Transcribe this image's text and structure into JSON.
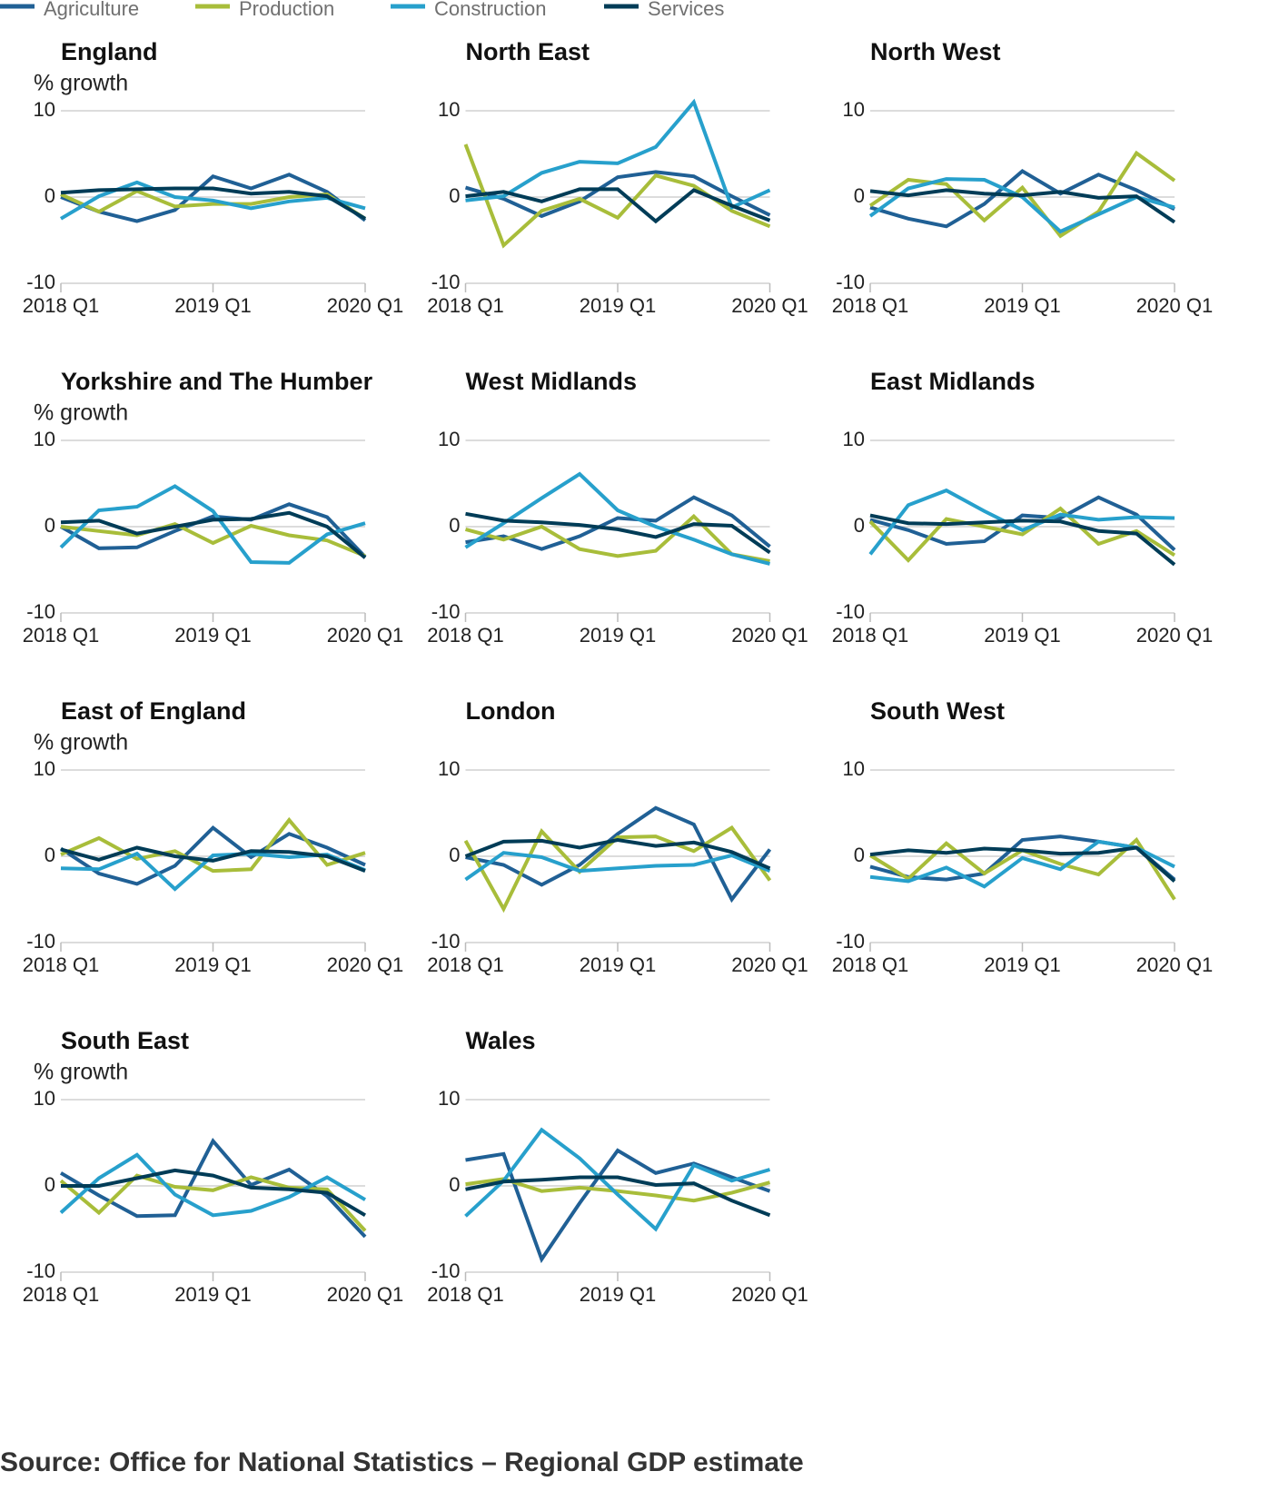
{
  "chart_data": [
    {
      "type": "line",
      "title": "England",
      "ylabel": "% growth",
      "categories": [
        "2018 Q1",
        null,
        null,
        null,
        "2019 Q1",
        null,
        null,
        null,
        "2020 Q1"
      ],
      "ylim": [
        -10,
        10
      ],
      "yticks": [
        -10,
        0,
        10
      ],
      "grid": true,
      "series": [
        {
          "name": "Agriculture",
          "color": "#206095",
          "values": [
            0,
            -1.7,
            -2.8,
            -1.5,
            2.4,
            1.0,
            2.6,
            0.6,
            -2.7
          ]
        },
        {
          "name": "Production",
          "color": "#a8bd3a",
          "values": [
            0.3,
            -1.7,
            0.7,
            -1.1,
            -0.8,
            -0.8,
            0,
            0.3,
            -2.5
          ]
        },
        {
          "name": "Construction",
          "color": "#27a0cc",
          "values": [
            -2.5,
            0.1,
            1.7,
            0,
            -0.4,
            -1.3,
            -0.5,
            -0.1,
            -1.3
          ]
        },
        {
          "name": "Services",
          "color": "#003c57",
          "values": [
            0.5,
            0.8,
            0.9,
            1.0,
            1.0,
            0.4,
            0.6,
            0.1,
            -2.5
          ]
        }
      ]
    },
    {
      "type": "line",
      "title": "North East",
      "categories": [
        "2018 Q1",
        null,
        null,
        null,
        "2019 Q1",
        null,
        null,
        null,
        "2020 Q1"
      ],
      "ylim": [
        -10,
        10
      ],
      "yticks": [
        -10,
        0,
        10
      ],
      "grid": true,
      "series": [
        {
          "name": "Agriculture",
          "color": "#206095",
          "values": [
            1.1,
            -0.2,
            -2.2,
            -0.5,
            2.3,
            2.9,
            2.4,
            0.1,
            -2.1
          ]
        },
        {
          "name": "Production",
          "color": "#a8bd3a",
          "values": [
            6.1,
            -5.6,
            -1.6,
            -0.2,
            -2.4,
            2.5,
            1.3,
            -1.6,
            -3.4
          ]
        },
        {
          "name": "Construction",
          "color": "#27a0cc",
          "values": [
            -0.4,
            0.1,
            2.8,
            4.1,
            3.9,
            5.8,
            11.0,
            -1.2,
            0.8
          ]
        },
        {
          "name": "Services",
          "color": "#003c57",
          "values": [
            0.1,
            0.6,
            -0.5,
            0.9,
            0.9,
            -2.8,
            0.8,
            -1.0,
            -2.7
          ]
        }
      ]
    },
    {
      "type": "line",
      "title": "North West",
      "categories": [
        "2018 Q1",
        null,
        null,
        null,
        "2019 Q1",
        null,
        null,
        null,
        "2020 Q1"
      ],
      "ylim": [
        -10,
        10
      ],
      "yticks": [
        -10,
        0,
        10
      ],
      "grid": true,
      "series": [
        {
          "name": "Agriculture",
          "color": "#206095",
          "values": [
            -1.2,
            -2.5,
            -3.4,
            -0.8,
            3.0,
            0.4,
            2.6,
            0.8,
            -1.4
          ]
        },
        {
          "name": "Production",
          "color": "#a8bd3a",
          "values": [
            -1.0,
            2.0,
            1.5,
            -2.7,
            1.1,
            -4.5,
            -1.7,
            5.1,
            1.9
          ]
        },
        {
          "name": "Construction",
          "color": "#27a0cc",
          "values": [
            -2.2,
            1.0,
            2.1,
            2.0,
            0,
            -4.0,
            -2.0,
            0,
            -1.2
          ]
        },
        {
          "name": "Services",
          "color": "#003c57",
          "values": [
            0.7,
            0.2,
            0.8,
            0.4,
            0.2,
            0.6,
            -0.1,
            0.1,
            -2.9
          ]
        }
      ]
    },
    {
      "type": "line",
      "title": "Yorkshire and The Humber",
      "ylabel": "% growth",
      "categories": [
        "2018 Q1",
        null,
        null,
        null,
        "2019 Q1",
        null,
        null,
        null,
        "2020 Q1"
      ],
      "ylim": [
        -10,
        10
      ],
      "yticks": [
        -10,
        0,
        10
      ],
      "grid": true,
      "series": [
        {
          "name": "Agriculture",
          "color": "#206095",
          "values": [
            0,
            -2.5,
            -2.4,
            -0.5,
            1.2,
            0.8,
            2.6,
            1.1,
            -3.5
          ]
        },
        {
          "name": "Production",
          "color": "#a8bd3a",
          "values": [
            0,
            -0.5,
            -1.0,
            0.3,
            -1.9,
            0.1,
            -1.0,
            -1.6,
            -3.4
          ]
        },
        {
          "name": "Construction",
          "color": "#27a0cc",
          "values": [
            -2.4,
            1.9,
            2.3,
            4.7,
            1.8,
            -4.1,
            -4.2,
            -0.9,
            0.4
          ]
        },
        {
          "name": "Services",
          "color": "#003c57",
          "values": [
            0.5,
            0.7,
            -0.8,
            0,
            0.8,
            0.9,
            1.6,
            0,
            -3.6
          ]
        }
      ]
    },
    {
      "type": "line",
      "title": "West Midlands",
      "categories": [
        "2018 Q1",
        null,
        null,
        null,
        "2019 Q1",
        null,
        null,
        null,
        "2020 Q1"
      ],
      "ylim": [
        -10,
        10
      ],
      "yticks": [
        -10,
        0,
        10
      ],
      "grid": true,
      "series": [
        {
          "name": "Agriculture",
          "color": "#206095",
          "values": [
            -1.8,
            -1.1,
            -2.6,
            -1.1,
            1.0,
            0.7,
            3.4,
            1.3,
            -2.3
          ]
        },
        {
          "name": "Production",
          "color": "#a8bd3a",
          "values": [
            -0.3,
            -1.5,
            0,
            -2.6,
            -3.4,
            -2.8,
            1.2,
            -3.2,
            -4.0
          ]
        },
        {
          "name": "Construction",
          "color": "#27a0cc",
          "values": [
            -2.4,
            0.4,
            3.3,
            6.1,
            1.9,
            0,
            -1.5,
            -3.2,
            -4.3
          ]
        },
        {
          "name": "Services",
          "color": "#003c57",
          "values": [
            1.5,
            0.7,
            0.5,
            0.2,
            -0.3,
            -1.2,
            0.3,
            0.1,
            -3.0
          ]
        }
      ]
    },
    {
      "type": "line",
      "title": "East Midlands",
      "categories": [
        "2018 Q1",
        null,
        null,
        null,
        "2019 Q1",
        null,
        null,
        null,
        "2020 Q1"
      ],
      "ylim": [
        -10,
        10
      ],
      "yticks": [
        -10,
        0,
        10
      ],
      "grid": true,
      "series": [
        {
          "name": "Agriculture",
          "color": "#206095",
          "values": [
            0.8,
            -0.4,
            -2.0,
            -1.7,
            1.3,
            1.0,
            3.4,
            1.4,
            -2.7
          ]
        },
        {
          "name": "Production",
          "color": "#a8bd3a",
          "values": [
            0.6,
            -3.9,
            0.9,
            0,
            -0.9,
            2.1,
            -2.0,
            -0.5,
            -3.3
          ]
        },
        {
          "name": "Construction",
          "color": "#27a0cc",
          "values": [
            -3.2,
            2.5,
            4.2,
            1.8,
            -0.4,
            1.4,
            0.8,
            1.1,
            1.0
          ]
        },
        {
          "name": "Services",
          "color": "#003c57",
          "values": [
            1.3,
            0.4,
            0.3,
            0.5,
            0.7,
            0.6,
            -0.5,
            -0.8,
            -4.4
          ]
        }
      ]
    },
    {
      "type": "line",
      "title": "East of England",
      "ylabel": "% growth",
      "categories": [
        "2018 Q1",
        null,
        null,
        null,
        "2019 Q1",
        null,
        null,
        null,
        "2020 Q1"
      ],
      "ylim": [
        -10,
        10
      ],
      "yticks": [
        -10,
        0,
        10
      ],
      "grid": true,
      "series": [
        {
          "name": "Agriculture",
          "color": "#206095",
          "values": [
            0.9,
            -2.0,
            -3.2,
            -1.1,
            3.3,
            -0.1,
            2.6,
            1.0,
            -1.0
          ]
        },
        {
          "name": "Production",
          "color": "#a8bd3a",
          "values": [
            0.2,
            2.1,
            -0.3,
            0.6,
            -1.7,
            -1.5,
            4.2,
            -1.0,
            0.4
          ]
        },
        {
          "name": "Construction",
          "color": "#27a0cc",
          "values": [
            -1.4,
            -1.5,
            0.3,
            -3.8,
            0.1,
            0.3,
            -0.1,
            0.2,
            -1.6
          ]
        },
        {
          "name": "Services",
          "color": "#003c57",
          "values": [
            0.8,
            -0.4,
            1.0,
            0,
            -0.5,
            0.6,
            0.5,
            0,
            -1.7
          ]
        }
      ]
    },
    {
      "type": "line",
      "title": "London",
      "categories": [
        "2018 Q1",
        null,
        null,
        null,
        "2019 Q1",
        null,
        null,
        null,
        "2020 Q1"
      ],
      "ylim": [
        -10,
        10
      ],
      "yticks": [
        -10,
        0,
        10
      ],
      "grid": true,
      "series": [
        {
          "name": "Agriculture",
          "color": "#206095",
          "values": [
            -0.1,
            -1.0,
            -3.3,
            -1.0,
            2.6,
            5.6,
            3.7,
            -5.0,
            0.8
          ]
        },
        {
          "name": "Production",
          "color": "#a8bd3a",
          "values": [
            1.8,
            -6.1,
            2.9,
            -1.8,
            2.2,
            2.3,
            0.6,
            3.3,
            -2.8
          ]
        },
        {
          "name": "Construction",
          "color": "#27a0cc",
          "values": [
            -2.7,
            0.4,
            -0.1,
            -1.7,
            -1.4,
            -1.1,
            -1.0,
            0.1,
            -1.7
          ]
        },
        {
          "name": "Services",
          "color": "#003c57",
          "values": [
            0,
            1.7,
            1.8,
            1.0,
            1.9,
            1.2,
            1.6,
            0.5,
            -1.4
          ]
        }
      ]
    },
    {
      "type": "line",
      "title": "South West",
      "categories": [
        "2018 Q1",
        null,
        null,
        null,
        "2019 Q1",
        null,
        null,
        null,
        "2020 Q1"
      ],
      "ylim": [
        -10,
        10
      ],
      "yticks": [
        -10,
        0,
        10
      ],
      "grid": true,
      "series": [
        {
          "name": "Agriculture",
          "color": "#206095",
          "values": [
            -1.2,
            -2.4,
            -2.7,
            -2.0,
            1.9,
            2.3,
            1.7,
            1.0,
            -2.7
          ]
        },
        {
          "name": "Production",
          "color": "#a8bd3a",
          "values": [
            0.1,
            -2.6,
            1.5,
            -2.0,
            0.7,
            -0.9,
            -2.1,
            1.9,
            -5.0
          ]
        },
        {
          "name": "Construction",
          "color": "#27a0cc",
          "values": [
            -2.4,
            -2.9,
            -1.3,
            -3.5,
            -0.2,
            -1.5,
            1.7,
            1.0,
            -1.2
          ]
        },
        {
          "name": "Services",
          "color": "#003c57",
          "values": [
            0.2,
            0.7,
            0.4,
            0.9,
            0.7,
            0.3,
            0.4,
            1.0,
            -2.9
          ]
        }
      ]
    },
    {
      "type": "line",
      "title": "South East",
      "ylabel": "% growth",
      "categories": [
        "2018 Q1",
        null,
        null,
        null,
        "2019 Q1",
        null,
        null,
        null,
        "2020 Q1"
      ],
      "ylim": [
        -10,
        10
      ],
      "yticks": [
        -10,
        0,
        10
      ],
      "grid": true,
      "series": [
        {
          "name": "Agriculture",
          "color": "#206095",
          "values": [
            1.5,
            -1.1,
            -3.5,
            -3.4,
            5.2,
            0.1,
            1.9,
            -1.2,
            -5.9
          ]
        },
        {
          "name": "Production",
          "color": "#a8bd3a",
          "values": [
            0.6,
            -3.1,
            1.2,
            -0.1,
            -0.5,
            1.0,
            -0.2,
            -0.4,
            -5.2
          ]
        },
        {
          "name": "Construction",
          "color": "#27a0cc",
          "values": [
            -3.1,
            0.9,
            3.6,
            -1.0,
            -3.4,
            -2.9,
            -1.3,
            1.0,
            -1.6
          ]
        },
        {
          "name": "Services",
          "color": "#003c57",
          "values": [
            0,
            0,
            0.9,
            1.8,
            1.2,
            -0.2,
            -0.4,
            -0.8,
            -3.4
          ]
        }
      ]
    },
    {
      "type": "line",
      "title": "Wales",
      "categories": [
        "2018 Q1",
        null,
        null,
        null,
        "2019 Q1",
        null,
        null,
        null,
        "2020 Q1"
      ],
      "ylim": [
        -10,
        10
      ],
      "yticks": [
        -10,
        0,
        10
      ],
      "grid": true,
      "series": [
        {
          "name": "Agriculture",
          "color": "#206095",
          "values": [
            3.0,
            3.7,
            -8.5,
            -2.0,
            4.1,
            1.5,
            2.6,
            1.0,
            -0.6
          ]
        },
        {
          "name": "Production",
          "color": "#a8bd3a",
          "values": [
            0.2,
            0.8,
            -0.6,
            -0.2,
            -0.6,
            -1.1,
            -1.7,
            -0.8,
            0.4
          ]
        },
        {
          "name": "Construction",
          "color": "#27a0cc",
          "values": [
            -3.5,
            0.6,
            6.5,
            3.2,
            -1.0,
            -5.0,
            2.4,
            0.6,
            1.9
          ]
        },
        {
          "name": "Services",
          "color": "#003c57",
          "values": [
            -0.4,
            0.5,
            0.7,
            1.0,
            1.0,
            0.1,
            0.3,
            -1.7,
            -3.4
          ]
        }
      ]
    }
  ],
  "source": "Source: Office for National Statistics – Regional GDP estimate"
}
